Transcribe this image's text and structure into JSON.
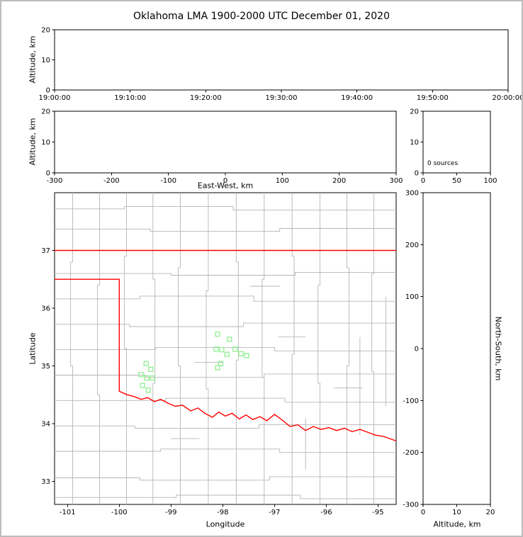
{
  "title": "Oklahoma LMA 1900-2000 UTC December 01, 2020",
  "colors": {
    "axis": "#000000",
    "figure_border": "#bdbdbd",
    "state_border": "#ff0000",
    "county_line": "#b5b5b5",
    "station_marker": "#90ee90"
  },
  "chart_data": [
    {
      "id": "time_height",
      "type": "scatter",
      "ylabel": "Altitude, km",
      "ylim": [
        0,
        20
      ],
      "yticks": [
        0,
        10,
        20
      ],
      "xtick_labels": [
        "19:00:00",
        "19:10:00",
        "19:20:00",
        "19:30:00",
        "19:40:00",
        "19:50:00",
        "20:00:00"
      ],
      "points": []
    },
    {
      "id": "ew_height",
      "type": "scatter",
      "xlabel": "East-West, km",
      "ylabel": "Altitude, km",
      "xlim": [
        -300,
        300
      ],
      "xticks": [
        -300,
        -200,
        -100,
        0,
        100,
        200,
        300
      ],
      "ylim": [
        0,
        20
      ],
      "yticks": [
        0,
        10,
        20
      ],
      "points": []
    },
    {
      "id": "altitude_histogram",
      "type": "line",
      "annotation": "0 sources",
      "xlim": [
        0,
        100
      ],
      "xticks": [
        0,
        50,
        100
      ],
      "ylim": [
        0,
        20
      ],
      "yticks": [
        0,
        10,
        20
      ],
      "points": []
    },
    {
      "id": "plan_view_map",
      "type": "scatter",
      "xlabel": "Longitude",
      "ylabel": "Latitude",
      "xlim": [
        -101.25,
        -94.65
      ],
      "xticks": [
        -101,
        -100,
        -99,
        -98,
        -97,
        -96,
        -95
      ],
      "ylim": [
        32.6,
        38.0
      ],
      "yticks": [
        33,
        34,
        35,
        36,
        37
      ],
      "stations": [
        [
          -98.1,
          35.55
        ],
        [
          -97.87,
          35.46
        ],
        [
          -98.13,
          35.29
        ],
        [
          -98.02,
          35.28
        ],
        [
          -97.76,
          35.29
        ],
        [
          -97.92,
          35.2
        ],
        [
          -97.65,
          35.21
        ],
        [
          -97.54,
          35.18
        ],
        [
          -98.04,
          35.04
        ],
        [
          -98.1,
          34.97
        ],
        [
          -99.48,
          35.04
        ],
        [
          -99.39,
          34.94
        ],
        [
          -99.58,
          34.85
        ],
        [
          -99.47,
          34.79
        ],
        [
          -99.36,
          34.79
        ],
        [
          -99.55,
          34.66
        ],
        [
          -99.44,
          34.58
        ]
      ],
      "state_border": [
        [
          [
            -101.25,
            37.0
          ],
          [
            -94.65,
            37.0
          ]
        ],
        [
          [
            -101.25,
            36.5
          ],
          [
            -100.0,
            36.5
          ],
          [
            -100.0,
            34.56
          ],
          [
            -99.85,
            34.5
          ],
          [
            -99.72,
            34.47
          ],
          [
            -99.58,
            34.42
          ],
          [
            -99.45,
            34.45
          ],
          [
            -99.32,
            34.38
          ],
          [
            -99.2,
            34.42
          ],
          [
            -99.05,
            34.35
          ],
          [
            -98.92,
            34.3
          ],
          [
            -98.78,
            34.32
          ],
          [
            -98.62,
            34.22
          ],
          [
            -98.48,
            34.27
          ],
          [
            -98.35,
            34.18
          ],
          [
            -98.2,
            34.11
          ],
          [
            -98.08,
            34.2
          ],
          [
            -97.95,
            34.13
          ],
          [
            -97.82,
            34.18
          ],
          [
            -97.68,
            34.08
          ],
          [
            -97.55,
            34.15
          ],
          [
            -97.42,
            34.07
          ],
          [
            -97.28,
            34.12
          ],
          [
            -97.15,
            34.05
          ],
          [
            -97.0,
            34.16
          ],
          [
            -96.85,
            34.06
          ],
          [
            -96.7,
            33.95
          ],
          [
            -96.55,
            33.98
          ],
          [
            -96.4,
            33.88
          ],
          [
            -96.25,
            33.95
          ],
          [
            -96.1,
            33.9
          ],
          [
            -95.95,
            33.93
          ],
          [
            -95.8,
            33.88
          ],
          [
            -95.65,
            33.92
          ],
          [
            -95.5,
            33.86
          ],
          [
            -95.35,
            33.9
          ],
          [
            -95.2,
            33.85
          ],
          [
            -95.05,
            33.8
          ],
          [
            -94.9,
            33.78
          ],
          [
            -94.65,
            33.7
          ]
        ]
      ],
      "county_lines": [
        [
          [
            -101.25,
            37.72
          ],
          [
            -99.9,
            37.72
          ],
          [
            -99.9,
            37.76
          ],
          [
            -97.8,
            37.76
          ],
          [
            -97.8,
            37.7
          ],
          [
            -94.65,
            37.7
          ]
        ],
        [
          [
            -101.25,
            37.37
          ],
          [
            -99.4,
            37.37
          ],
          [
            -99.4,
            37.33
          ],
          [
            -96.9,
            37.33
          ],
          [
            -96.9,
            37.38
          ],
          [
            -94.65,
            37.38
          ]
        ],
        [
          [
            -101.25,
            36.6
          ],
          [
            -99.0,
            36.6
          ],
          [
            -99.0,
            36.57
          ],
          [
            -96.6,
            36.57
          ],
          [
            -96.6,
            36.62
          ],
          [
            -94.65,
            36.62
          ]
        ],
        [
          [
            -101.25,
            36.16
          ],
          [
            -99.6,
            36.16
          ],
          [
            -99.6,
            36.21
          ],
          [
            -97.4,
            36.21
          ],
          [
            -97.4,
            36.12
          ],
          [
            -94.65,
            36.12
          ]
        ],
        [
          [
            -101.25,
            35.72
          ],
          [
            -99.8,
            35.72
          ],
          [
            -99.8,
            35.68
          ],
          [
            -97.6,
            35.68
          ],
          [
            -97.6,
            35.74
          ],
          [
            -94.65,
            35.74
          ]
        ],
        [
          [
            -101.25,
            35.28
          ],
          [
            -99.3,
            35.28
          ],
          [
            -99.3,
            35.32
          ],
          [
            -97.0,
            35.32
          ],
          [
            -97.0,
            35.26
          ],
          [
            -94.65,
            35.26
          ]
        ],
        [
          [
            -101.25,
            34.84
          ],
          [
            -99.5,
            34.84
          ],
          [
            -99.5,
            34.8
          ],
          [
            -97.2,
            34.8
          ],
          [
            -97.2,
            34.86
          ],
          [
            -94.65,
            34.86
          ]
        ],
        [
          [
            -101.25,
            34.4
          ],
          [
            -99.1,
            34.4
          ],
          [
            -99.1,
            34.44
          ],
          [
            -96.8,
            34.44
          ],
          [
            -96.8,
            34.37
          ],
          [
            -94.65,
            34.37
          ]
        ],
        [
          [
            -101.25,
            33.96
          ],
          [
            -99.7,
            33.96
          ],
          [
            -99.7,
            33.92
          ],
          [
            -97.3,
            33.92
          ],
          [
            -97.3,
            33.98
          ],
          [
            -94.65,
            33.98
          ]
        ],
        [
          [
            -101.25,
            33.52
          ],
          [
            -99.2,
            33.52
          ],
          [
            -99.2,
            33.56
          ],
          [
            -96.9,
            33.56
          ],
          [
            -96.9,
            33.5
          ],
          [
            -94.65,
            33.5
          ]
        ],
        [
          [
            -101.25,
            33.06
          ],
          [
            -99.6,
            33.06
          ],
          [
            -99.6,
            33.02
          ],
          [
            -97.1,
            33.02
          ],
          [
            -97.1,
            33.08
          ],
          [
            -94.65,
            33.08
          ]
        ],
        [
          [
            -101.25,
            32.72
          ],
          [
            -98.9,
            32.72
          ],
          [
            -98.9,
            32.76
          ],
          [
            -96.5,
            32.76
          ],
          [
            -96.5,
            32.7
          ],
          [
            -94.65,
            32.7
          ]
        ],
        [
          [
            -100.9,
            38.0
          ],
          [
            -100.9,
            36.8
          ],
          [
            -100.94,
            36.8
          ],
          [
            -100.94,
            35.0
          ],
          [
            -100.9,
            35.0
          ],
          [
            -100.9,
            32.6
          ]
        ],
        [
          [
            -100.38,
            38.0
          ],
          [
            -100.38,
            36.4
          ],
          [
            -100.42,
            36.4
          ],
          [
            -100.42,
            34.5
          ],
          [
            -100.38,
            34.5
          ],
          [
            -100.38,
            32.6
          ]
        ],
        [
          [
            -99.86,
            38.0
          ],
          [
            -99.86,
            36.9
          ],
          [
            -99.9,
            36.9
          ],
          [
            -99.9,
            35.3
          ],
          [
            -99.86,
            35.3
          ],
          [
            -99.86,
            32.6
          ]
        ],
        [
          [
            -99.35,
            38.0
          ],
          [
            -99.35,
            36.5
          ],
          [
            -99.31,
            36.5
          ],
          [
            -99.31,
            34.7
          ],
          [
            -99.35,
            34.7
          ],
          [
            -99.35,
            32.6
          ]
        ],
        [
          [
            -98.82,
            38.0
          ],
          [
            -98.82,
            36.7
          ],
          [
            -98.86,
            36.7
          ],
          [
            -98.86,
            35.0
          ],
          [
            -98.82,
            35.0
          ],
          [
            -98.82,
            32.6
          ]
        ],
        [
          [
            -98.28,
            38.0
          ],
          [
            -98.28,
            36.3
          ],
          [
            -98.32,
            36.3
          ],
          [
            -98.32,
            34.6
          ],
          [
            -98.28,
            34.6
          ],
          [
            -98.28,
            32.6
          ]
        ],
        [
          [
            -97.74,
            38.0
          ],
          [
            -97.74,
            36.8
          ],
          [
            -97.7,
            36.8
          ],
          [
            -97.7,
            35.1
          ],
          [
            -97.74,
            35.1
          ],
          [
            -97.74,
            32.6
          ]
        ],
        [
          [
            -97.2,
            38.0
          ],
          [
            -97.2,
            36.5
          ],
          [
            -97.24,
            36.5
          ],
          [
            -97.24,
            34.8
          ],
          [
            -97.2,
            34.8
          ],
          [
            -97.2,
            32.6
          ]
        ],
        [
          [
            -96.66,
            38.0
          ],
          [
            -96.66,
            36.9
          ],
          [
            -96.62,
            36.9
          ],
          [
            -96.62,
            35.2
          ],
          [
            -96.66,
            35.2
          ],
          [
            -96.66,
            32.6
          ]
        ],
        [
          [
            -96.12,
            38.0
          ],
          [
            -96.12,
            36.4
          ],
          [
            -96.16,
            36.4
          ],
          [
            -96.16,
            34.7
          ],
          [
            -96.12,
            34.7
          ],
          [
            -96.12,
            32.6
          ]
        ],
        [
          [
            -95.6,
            38.0
          ],
          [
            -95.6,
            36.7
          ],
          [
            -95.56,
            36.7
          ],
          [
            -95.56,
            35.0
          ],
          [
            -95.6,
            35.0
          ],
          [
            -95.6,
            32.6
          ]
        ],
        [
          [
            -95.08,
            38.0
          ],
          [
            -95.08,
            36.6
          ],
          [
            -95.12,
            36.6
          ],
          [
            -95.12,
            34.9
          ],
          [
            -95.08,
            34.9
          ],
          [
            -95.08,
            32.6
          ]
        ],
        [
          [
            -94.85,
            36.2
          ],
          [
            -94.85,
            34.3
          ]
        ],
        [
          [
            -96.93,
            35.5
          ],
          [
            -96.4,
            35.5
          ]
        ],
        [
          [
            -95.35,
            35.5
          ],
          [
            -95.35,
            33.8
          ]
        ],
        [
          [
            -98.55,
            35.06
          ],
          [
            -98.0,
            35.06
          ]
        ],
        [
          [
            -95.85,
            34.62
          ],
          [
            -95.3,
            34.62
          ]
        ],
        [
          [
            -97.47,
            36.38
          ],
          [
            -96.9,
            36.38
          ]
        ],
        [
          [
            -99.0,
            33.74
          ],
          [
            -98.45,
            33.74
          ]
        ],
        [
          [
            -96.4,
            34.1
          ],
          [
            -96.4,
            33.2
          ]
        ]
      ]
    },
    {
      "id": "ns_height",
      "type": "scatter",
      "xlabel": "Altitude, km",
      "ylabel_right": "North-South, km",
      "xlim": [
        0,
        20
      ],
      "xticks": [
        0,
        10,
        20
      ],
      "ylim": [
        -300,
        300
      ],
      "yticks": [
        -300,
        -200,
        -100,
        0,
        100,
        200,
        300
      ],
      "points": []
    }
  ]
}
